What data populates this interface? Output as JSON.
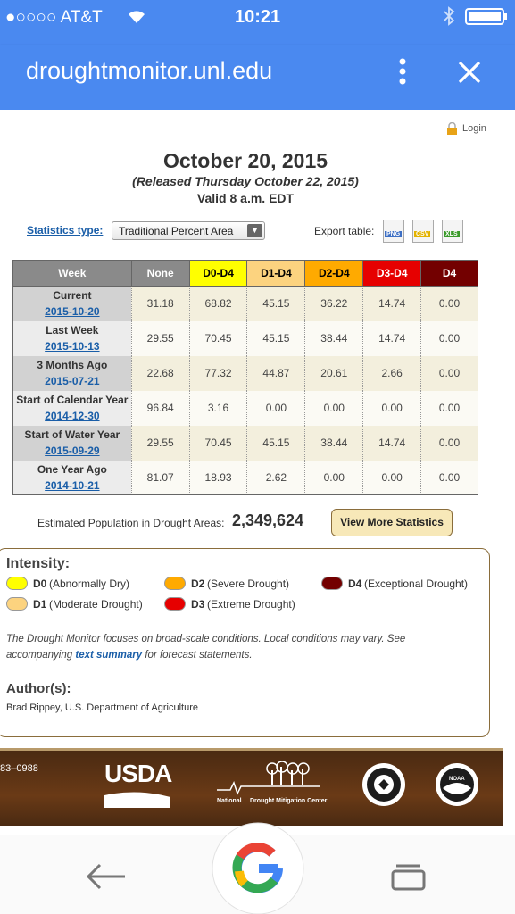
{
  "status_bar": {
    "carrier": "●○○○○ AT&T",
    "time": "10:21"
  },
  "browser": {
    "url": "droughtmonitor.unl.edu"
  },
  "page": {
    "login": "Login",
    "title": "October 20, 2015",
    "released": "(Released Thursday October 22, 2015)",
    "valid": "Valid 8 a.m. EDT",
    "statistics_label": "Statistics type:",
    "statistics_value": "Traditional Percent Area",
    "export_label": "Export table:",
    "export_formats": [
      "PNG",
      "CSV",
      "XLS"
    ]
  },
  "table": {
    "columns": [
      "Week",
      "None",
      "D0-D4",
      "D1-D4",
      "D2-D4",
      "D3-D4",
      "D4"
    ],
    "column_colors": [
      "#8a8a8a",
      "#8a8a8a",
      "#ffff00",
      "#fcd37f",
      "#ffaa00",
      "#e60000",
      "#730000"
    ],
    "column_text_colors": [
      "#ffffff",
      "#ffffff",
      "#000000",
      "#000000",
      "#000000",
      "#ffffff",
      "#ffffff"
    ],
    "rows": [
      {
        "week": "Current",
        "date": "2015-10-20",
        "values": [
          "31.18",
          "68.82",
          "45.15",
          "36.22",
          "14.74",
          "0.00"
        ]
      },
      {
        "week": "Last Week",
        "date": "2015-10-13",
        "values": [
          "29.55",
          "70.45",
          "45.15",
          "38.44",
          "14.74",
          "0.00"
        ]
      },
      {
        "week": "3 Months Ago",
        "date": "2015-07-21",
        "values": [
          "22.68",
          "77.32",
          "44.87",
          "20.61",
          "2.66",
          "0.00"
        ]
      },
      {
        "week": "Start of Calendar Year",
        "date": "2014-12-30",
        "values": [
          "96.84",
          "3.16",
          "0.00",
          "0.00",
          "0.00",
          "0.00"
        ]
      },
      {
        "week": "Start of Water Year",
        "date": "2015-09-29",
        "values": [
          "29.55",
          "70.45",
          "45.15",
          "38.44",
          "14.74",
          "0.00"
        ]
      },
      {
        "week": "One Year Ago",
        "date": "2014-10-21",
        "values": [
          "81.07",
          "18.93",
          "2.62",
          "0.00",
          "0.00",
          "0.00"
        ]
      }
    ]
  },
  "population": {
    "label": "Estimated Population in Drought Areas:",
    "value": "2,349,624",
    "button": "View More Statistics"
  },
  "legend": {
    "title": "Intensity:",
    "items": [
      {
        "code": "D0",
        "desc": "(Abnormally Dry)",
        "color": "#ffff00"
      },
      {
        "code": "D1",
        "desc": "(Moderate Drought)",
        "color": "#fcd37f"
      },
      {
        "code": "D2",
        "desc": "(Severe Drought)",
        "color": "#ffaa00"
      },
      {
        "code": "D3",
        "desc": "(Extreme Drought)",
        "color": "#e60000"
      },
      {
        "code": "D4",
        "desc": "(Exceptional Drought)",
        "color": "#730000"
      }
    ],
    "note_before": "The Drought Monitor focuses on broad-scale conditions. Local conditions may vary. See accompanying ",
    "note_link": "text summary",
    "note_after": " for forecast statements.",
    "author_title": "Author(s):",
    "author": "Brad Rippey, U.S. Department of Agriculture"
  },
  "footer": {
    "phone": "83–0988",
    "usda": "USDA",
    "ndmc_national": "National",
    "ndmc_name": "Drought Mitigation Center",
    "noaa": "NOAA"
  }
}
